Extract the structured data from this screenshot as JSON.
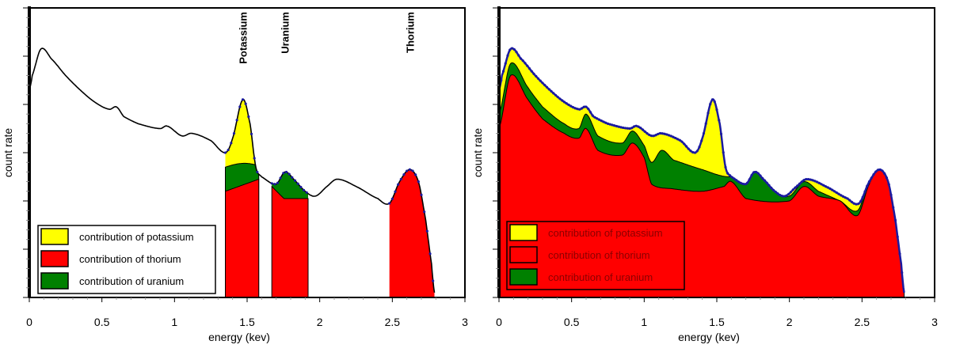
{
  "chart_data": [
    {
      "type": "area",
      "title": "",
      "xlabel": "energy (kev)",
      "ylabel": "count rate",
      "xlim": [
        0,
        3
      ],
      "ylim": [
        0,
        6
      ],
      "xticks": [
        "0",
        "0.5",
        "1",
        "1.5",
        "2",
        "2.5",
        "3"
      ],
      "peak_labels": [
        {
          "text": "Potassium",
          "x": 1.47
        },
        {
          "text": "Uranium",
          "x": 1.76
        },
        {
          "text": "Thorium",
          "x": 2.62
        }
      ],
      "legend": [
        "contribution of potassium",
        "contribution of thorium",
        "contribution of uranium"
      ],
      "legend_position": "bottom-left",
      "colors": {
        "potassium": "#ffff00",
        "thorium": "#ff0000",
        "uranium": "#008000",
        "line": "#000000",
        "marker": "#1a1aa0"
      },
      "total": {
        "x": [
          0,
          0.02,
          0.08,
          0.15,
          0.25,
          0.35,
          0.45,
          0.55,
          0.6,
          0.65,
          0.75,
          0.9,
          0.95,
          1.05,
          1.12,
          1.25,
          1.35,
          1.4,
          1.47,
          1.52,
          1.56,
          1.6,
          1.7,
          1.76,
          1.82,
          1.9,
          1.97,
          2.05,
          2.12,
          2.25,
          2.4,
          2.48,
          2.55,
          2.62,
          2.68,
          2.73,
          2.77,
          2.79
        ],
        "y": [
          4.3,
          4.6,
          5.15,
          4.95,
          4.6,
          4.3,
          4.05,
          3.9,
          3.95,
          3.75,
          3.6,
          3.5,
          3.55,
          3.35,
          3.4,
          3.25,
          3.0,
          3.3,
          4.1,
          3.6,
          2.7,
          2.5,
          2.35,
          2.6,
          2.45,
          2.2,
          2.1,
          2.3,
          2.45,
          2.3,
          2.05,
          1.95,
          2.4,
          2.65,
          2.4,
          1.6,
          0.7,
          0.1
        ]
      },
      "windows": [
        {
          "name": "potassium",
          "x": [
            1.35,
            1.58
          ],
          "uranium_top": 2.7,
          "thorium_top": 2.2
        },
        {
          "name": "uranium",
          "x": [
            1.67,
            1.92
          ],
          "thorium_top": 2.05
        },
        {
          "name": "thorium",
          "x": [
            2.48,
            2.79
          ]
        }
      ]
    },
    {
      "type": "area",
      "title": "",
      "xlabel": "energy (kev)",
      "ylabel": "count rate",
      "xlim": [
        0,
        3
      ],
      "ylim": [
        0,
        6
      ],
      "xticks": [
        "0",
        "0.5",
        "1",
        "1.5",
        "2",
        "2.5",
        "3"
      ],
      "legend": [
        "contribution of potassium",
        "contribution of thorium",
        "contribution of uranium"
      ],
      "legend_position": "bottom-left",
      "uranium_top": {
        "x": [
          0,
          0.08,
          0.2,
          0.3,
          0.45,
          0.55,
          0.6,
          0.68,
          0.85,
          0.92,
          1.0,
          1.05,
          1.12,
          1.2,
          1.4,
          1.58,
          1.7,
          1.76,
          1.9,
          2.0,
          2.1,
          2.2,
          2.35,
          2.47,
          2.55,
          2.62,
          2.68,
          2.73,
          2.77,
          2.79
        ],
        "y": [
          3.8,
          4.85,
          4.35,
          3.95,
          3.6,
          3.5,
          3.8,
          3.35,
          3.2,
          3.45,
          3.15,
          2.8,
          3.05,
          2.85,
          2.65,
          2.5,
          2.6,
          2.7,
          2.2,
          2.1,
          2.4,
          2.2,
          2.0,
          1.8,
          2.4,
          2.65,
          2.4,
          1.6,
          0.7,
          0.1
        ]
      },
      "thorium_top": {
        "x": [
          0,
          0.08,
          0.2,
          0.3,
          0.45,
          0.55,
          0.6,
          0.68,
          0.85,
          0.92,
          1.0,
          1.05,
          1.2,
          1.4,
          1.55,
          1.6,
          1.7,
          2.0,
          2.1,
          2.2,
          2.35,
          2.47,
          2.55,
          2.62,
          2.68,
          2.73,
          2.77,
          2.79
        ],
        "y": [
          3.5,
          4.6,
          4.1,
          3.7,
          3.4,
          3.3,
          3.5,
          3.05,
          2.95,
          3.2,
          2.9,
          2.35,
          2.25,
          2.2,
          2.3,
          2.4,
          2.05,
          2.0,
          2.3,
          2.1,
          2.0,
          1.7,
          2.35,
          2.65,
          2.4,
          1.6,
          0.7,
          0.1
        ]
      }
    }
  ]
}
